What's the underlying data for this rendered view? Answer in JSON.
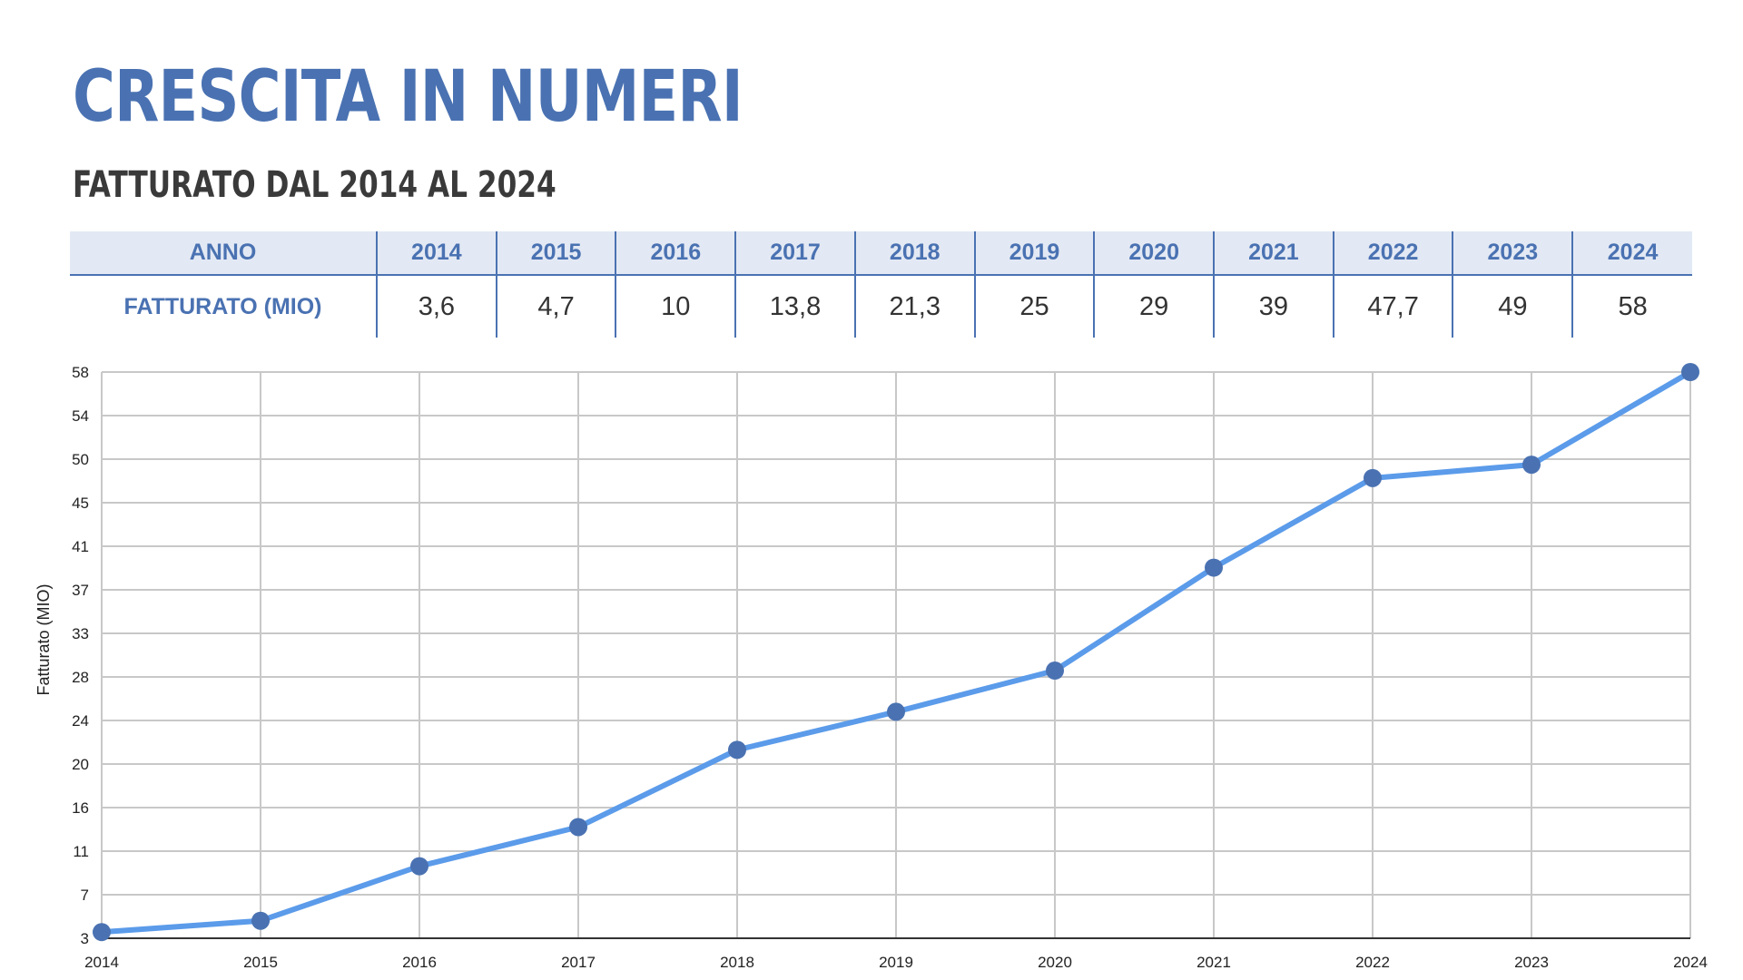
{
  "header": {
    "title": "CRESCITA IN NUMERI",
    "subtitle": "FATTURATO DAL 2014 AL 2024"
  },
  "table": {
    "row_label_year": "ANNO",
    "row_label_revenue": "FATTURATO (MIO)",
    "years": [
      "2014",
      "2015",
      "2016",
      "2017",
      "2018",
      "2019",
      "2020",
      "2021",
      "2022",
      "2023",
      "2024"
    ],
    "revenue": [
      "3,6",
      "4,7",
      "10",
      "13,8",
      "21,3",
      "25",
      "29",
      "39",
      "47,7",
      "49",
      "58"
    ]
  },
  "colors": {
    "accent": "#4a72b2",
    "line": "#5b9bea",
    "marker": "#4a72b2",
    "header_bg": "#e3e9f4",
    "grid": "#c8c8c8"
  },
  "chart_data": {
    "type": "line",
    "x": [
      2014,
      2015,
      2016,
      2017,
      2018,
      2019,
      2020,
      2021,
      2022,
      2023,
      2024
    ],
    "series": [
      {
        "values": [
          3.6,
          4.7,
          10,
          13.8,
          21.3,
          25,
          29,
          39,
          47.7,
          49,
          58
        ]
      }
    ],
    "ylabel": "Fatturato (MIO)",
    "xlabel": "",
    "ylim": [
      3,
      58
    ],
    "yticks": [
      3,
      7,
      11,
      16,
      20,
      24,
      28,
      33,
      37,
      41,
      45,
      50,
      54,
      58
    ],
    "xticks": [
      "2014",
      "2015",
      "2016",
      "2017",
      "2018",
      "2019",
      "2020",
      "2021",
      "2022",
      "2023",
      "2024"
    ],
    "grid": true,
    "legend": "none"
  }
}
